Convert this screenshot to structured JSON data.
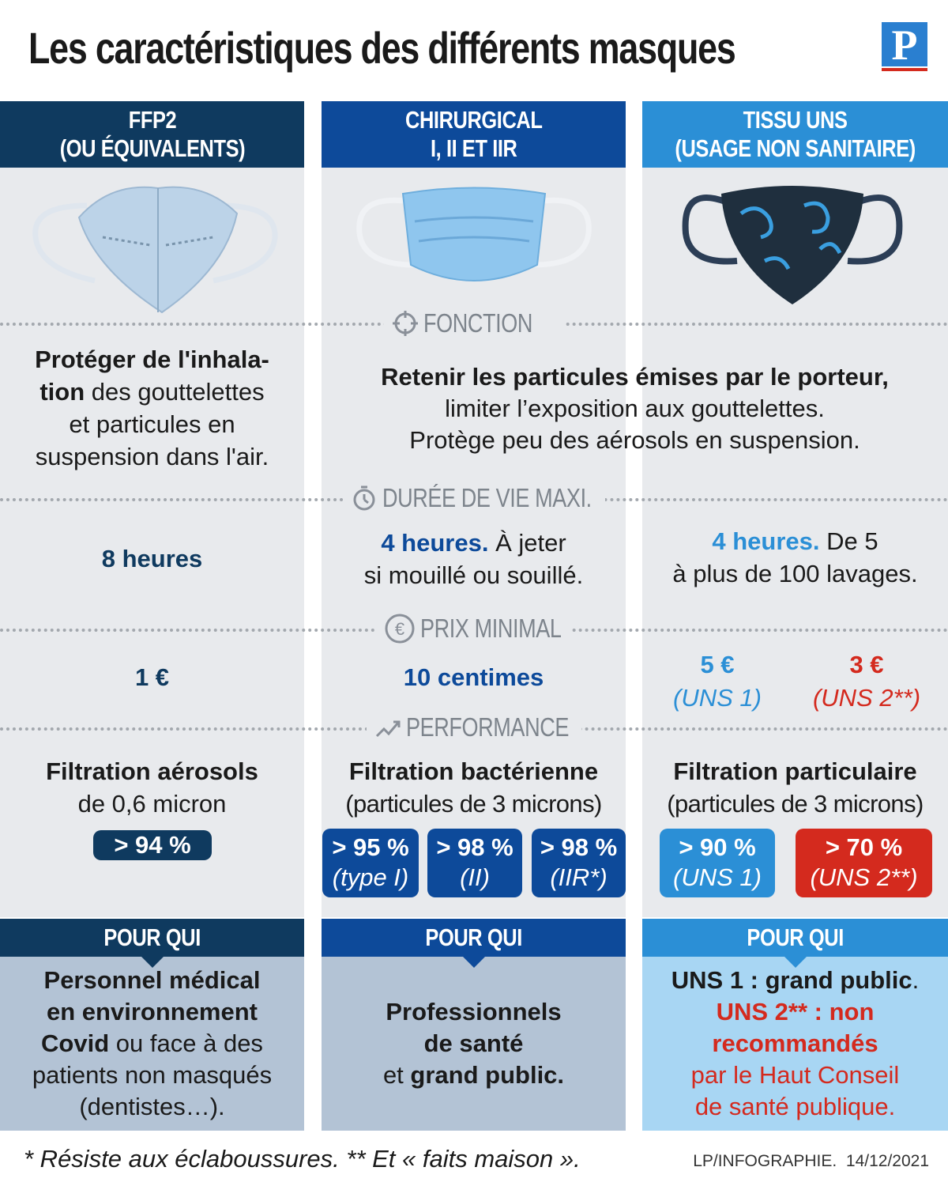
{
  "header": {
    "title": "Les caractéristiques des différents masques",
    "logo": "P"
  },
  "columns": [
    {
      "title": [
        "FFP2",
        "(OU ÉQUIVALENTS)"
      ]
    },
    {
      "title": [
        "CHIRURGICAL",
        "I, II ET IIR"
      ]
    },
    {
      "title": [
        "TISSU UNS",
        "(USAGE NON SANITAIRE)"
      ]
    }
  ],
  "sections": [
    "FONCTION",
    "DURÉE DE VIE MAXI.",
    "PRIX MINIMAL",
    "PERFORMANCE"
  ],
  "function": {
    "ffp2": [
      "Protéger de l'inhala-",
      "tion",
      "des gouttelettes",
      "et particules en",
      "suspension dans l'air."
    ],
    "surgical_fabric": [
      "Retenir les particules émises par le porteur,",
      "limiter l’exposition aux gouttelettes.",
      "Protège peu des aérosols en suspension."
    ]
  },
  "lifetime": {
    "ffp2": [
      "8 heures"
    ],
    "surgical": [
      "4 heures.",
      "À jeter",
      "si mouillé ou souillé."
    ],
    "fabric": [
      "4 heures.",
      "De 5",
      "à plus de 100 lavages."
    ]
  },
  "price": {
    "ffp2": "1 €",
    "surgical": "10 centimes",
    "fabric": [
      {
        "price": "5 €",
        "type": "(UNS 1)"
      },
      {
        "price": "3 €",
        "type": "(UNS 2**)"
      }
    ]
  },
  "performance": {
    "ffp2": {
      "title": "Filtration aérosols",
      "detail": "de 0,6 micron",
      "badges": [
        {
          "value": "> 94 %"
        }
      ]
    },
    "surgical": {
      "title": "Filtration bactérienne",
      "detail": "(particules de 3 microns)",
      "badges": [
        {
          "value": "> 95 %",
          "type": "(type I)"
        },
        {
          "value": "> 98 %",
          "type": "(II)"
        },
        {
          "value": "> 98 %",
          "type": "(IIR*)"
        }
      ]
    },
    "fabric": {
      "title": "Filtration particulaire",
      "detail": "(particules de 3 microns)",
      "badges": [
        {
          "value": "> 90 %",
          "type": "(UNS 1)"
        },
        {
          "value": "> 70 %",
          "type": "(UNS 2**)"
        }
      ]
    }
  },
  "for_whom": {
    "title": "POUR QUI",
    "ffp2": [
      "Personnel médical",
      "en environnement",
      "Covid",
      "ou face à des",
      "patients non masqués",
      "(dentistes…)."
    ],
    "surgical": [
      "Professionnels",
      "de santé",
      "et",
      "grand public."
    ],
    "fabric": [
      "UNS 1 : grand public",
      ".",
      "UNS 2** : non",
      "recommandés",
      "par le Haut Conseil",
      "de santé publique."
    ]
  },
  "footer": {
    "note": "* Résiste aux éclaboussures. ** Et « faits maison ».",
    "credit": "LP/INFOGRAPHIE.  14/12/2021"
  }
}
